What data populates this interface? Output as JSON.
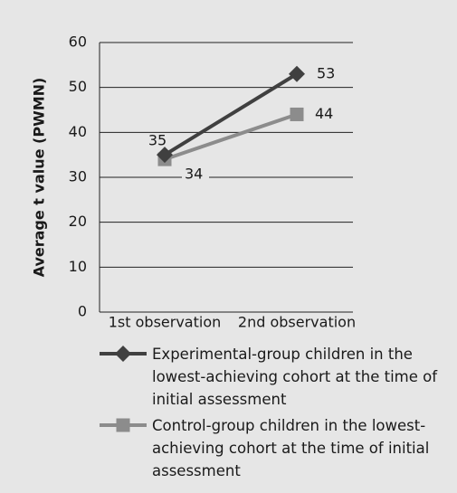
{
  "chart_data": {
    "type": "line",
    "y_label": "Average t value (PWMN)",
    "categories": [
      "1st observation",
      "2nd observation"
    ],
    "series": [
      {
        "name": "Experimental-group children in the lowest-achieving cohort at the time of initial assessment",
        "color": "#404040",
        "marker": "diamond",
        "values": [
          35,
          53
        ]
      },
      {
        "name": "Control-group children in the lowest-achieving cohort at the time of initial assessment",
        "color": "#8c8c8c",
        "marker": "square",
        "values": [
          34,
          44
        ]
      }
    ],
    "ylim": [
      0,
      60
    ],
    "yticks": [
      0,
      10,
      20,
      30,
      40,
      50,
      60
    ],
    "grid": true,
    "legend": "bottom"
  }
}
